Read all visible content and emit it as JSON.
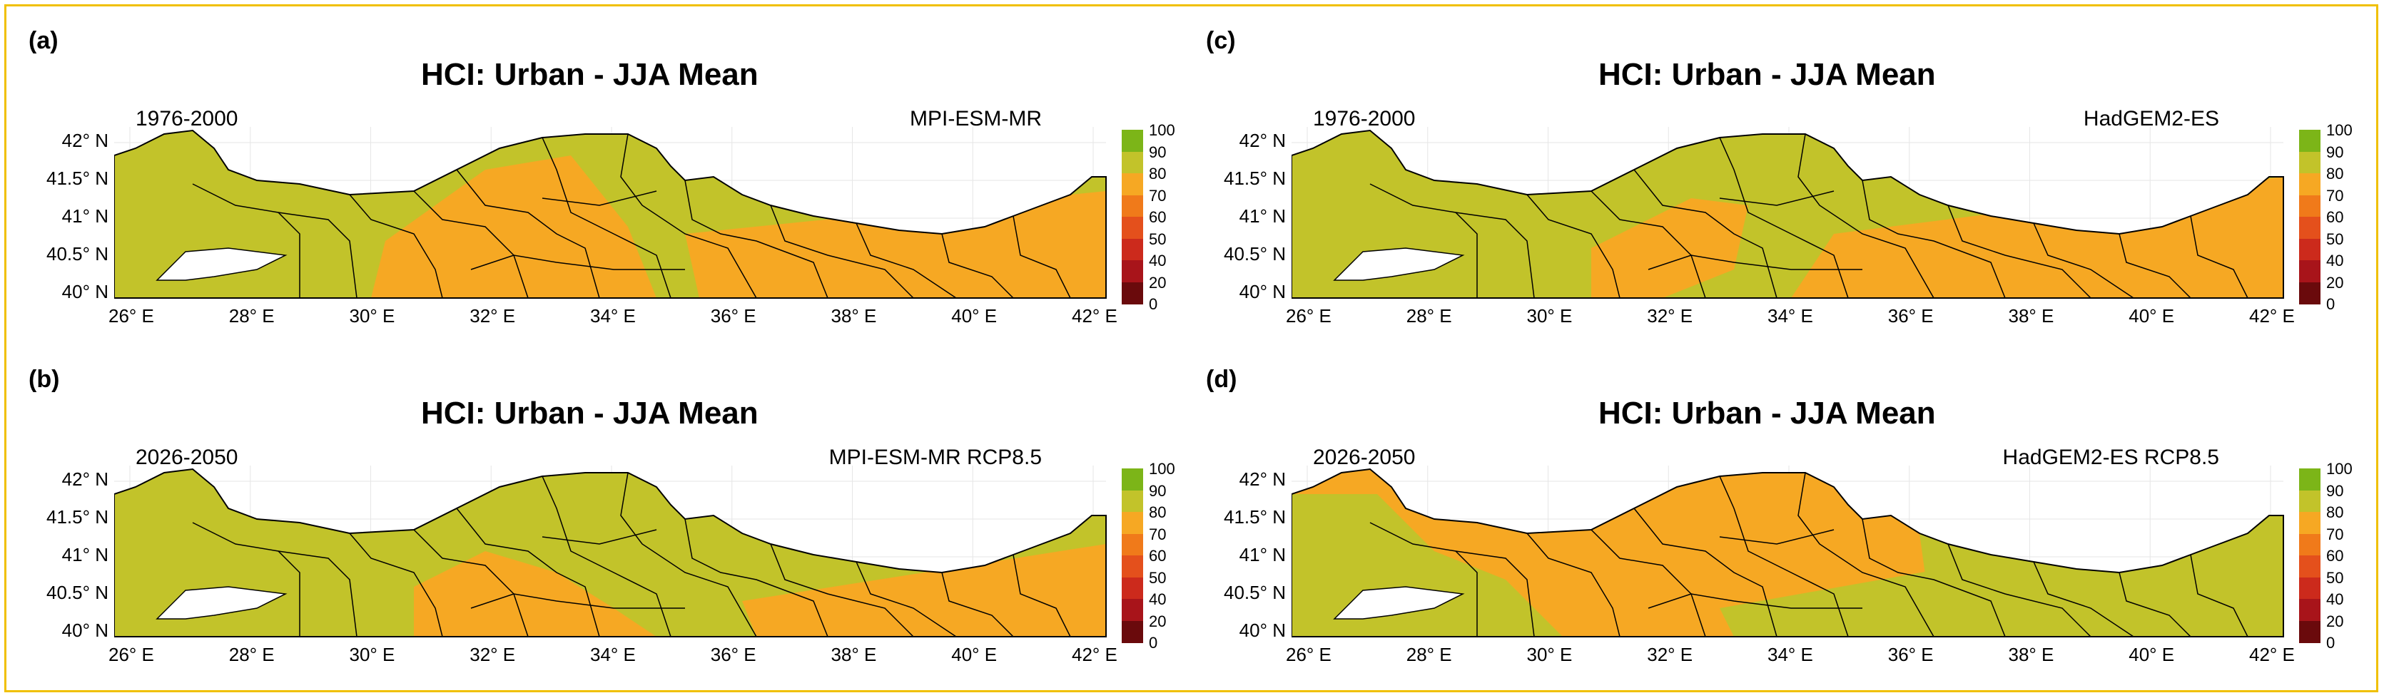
{
  "figure": {
    "panels": [
      {
        "label": "(a)",
        "title": "HCI: Urban - JJA Mean",
        "period": "1976-2000",
        "model": "MPI-ESM-MR",
        "dominant_class": "80-90",
        "secondary_class": "70-80"
      },
      {
        "label": "(b)",
        "title": "HCI: Urban - JJA Mean",
        "period": "2026-2050",
        "model": "MPI-ESM-MR RCP8.5",
        "dominant_class": "80-90",
        "secondary_class": "70-80"
      },
      {
        "label": "(c)",
        "title": "HCI: Urban - JJA Mean",
        "period": "1976-2000",
        "model": "HadGEM2-ES",
        "dominant_class": "80-90",
        "secondary_class": "70-80"
      },
      {
        "label": "(d)",
        "title": "HCI: Urban - JJA Mean",
        "period": "2026-2050",
        "model": "HadGEM2-ES RCP8.5",
        "dominant_class": "70-80",
        "secondary_class": "80-90"
      }
    ],
    "lat_ticks": [
      "42° N",
      "41.5° N",
      "41° N",
      "40.5° N",
      "40° N"
    ],
    "lon_ticks": [
      "26° E",
      "28° E",
      "30° E",
      "32° E",
      "34° E",
      "36° E",
      "38° E",
      "40° E",
      "42° E"
    ],
    "colorbar": {
      "ticks": [
        "100",
        "90",
        "80",
        "70",
        "60",
        "50",
        "40",
        "20",
        "0"
      ],
      "classes": [
        {
          "range": "90-100",
          "color": "#7cb518"
        },
        {
          "range": "80-90",
          "color": "#c2c32a"
        },
        {
          "range": "70-80",
          "color": "#f6a823"
        },
        {
          "range": "60-70",
          "color": "#f07a1a"
        },
        {
          "range": "50-60",
          "color": "#e4501c"
        },
        {
          "range": "40-50",
          "color": "#cc2a1c"
        },
        {
          "range": "20-40",
          "color": "#a8141a"
        },
        {
          "range": "0-20",
          "color": "#6a0a0c"
        }
      ]
    }
  }
}
